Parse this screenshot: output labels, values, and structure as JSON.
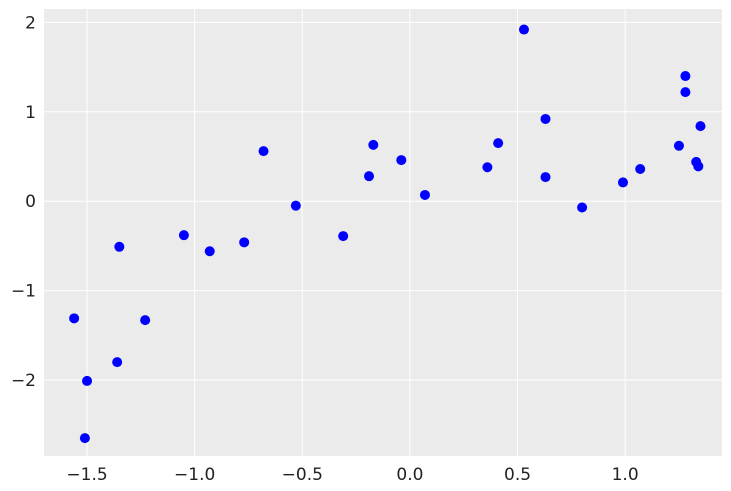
{
  "chart_data": {
    "type": "scatter",
    "title": "",
    "xlabel": "",
    "ylabel": "",
    "xlim": [
      -1.7,
      1.45
    ],
    "ylim": [
      -2.85,
      2.15
    ],
    "xticks": [
      -1.5,
      -1.0,
      -0.5,
      0.0,
      0.5,
      1.0
    ],
    "xtick_labels": [
      "−1.5",
      "−1.0",
      "−0.5",
      "0.0",
      "0.5",
      "1.0"
    ],
    "yticks": [
      -2,
      -1,
      0,
      1,
      2
    ],
    "ytick_labels": [
      "−2",
      "−1",
      "0",
      "1",
      "2"
    ],
    "grid": true,
    "background_color": "#ebebeb",
    "grid_color": "#ffffff",
    "marker_color": "#0000ff",
    "points": [
      {
        "x": -1.56,
        "y": -1.31
      },
      {
        "x": -1.5,
        "y": -2.01
      },
      {
        "x": -1.51,
        "y": -2.65
      },
      {
        "x": -1.36,
        "y": -1.8
      },
      {
        "x": -1.35,
        "y": -0.51
      },
      {
        "x": -1.23,
        "y": -1.33
      },
      {
        "x": -1.05,
        "y": -0.38
      },
      {
        "x": -0.93,
        "y": -0.56
      },
      {
        "x": -0.77,
        "y": -0.46
      },
      {
        "x": -0.68,
        "y": 0.56
      },
      {
        "x": -0.53,
        "y": -0.05
      },
      {
        "x": -0.31,
        "y": -0.39
      },
      {
        "x": -0.19,
        "y": 0.28
      },
      {
        "x": -0.17,
        "y": 0.63
      },
      {
        "x": -0.04,
        "y": 0.46
      },
      {
        "x": 0.07,
        "y": 0.07
      },
      {
        "x": 0.36,
        "y": 0.38
      },
      {
        "x": 0.41,
        "y": 0.65
      },
      {
        "x": 0.53,
        "y": 1.92
      },
      {
        "x": 0.63,
        "y": 0.92
      },
      {
        "x": 0.63,
        "y": 0.27
      },
      {
        "x": 0.8,
        "y": -0.07
      },
      {
        "x": 0.99,
        "y": 0.21
      },
      {
        "x": 1.07,
        "y": 0.36
      },
      {
        "x": 1.25,
        "y": 0.62
      },
      {
        "x": 1.28,
        "y": 1.4
      },
      {
        "x": 1.28,
        "y": 1.22
      },
      {
        "x": 1.33,
        "y": 0.44
      },
      {
        "x": 1.34,
        "y": 0.39
      },
      {
        "x": 1.35,
        "y": 0.84
      }
    ]
  }
}
